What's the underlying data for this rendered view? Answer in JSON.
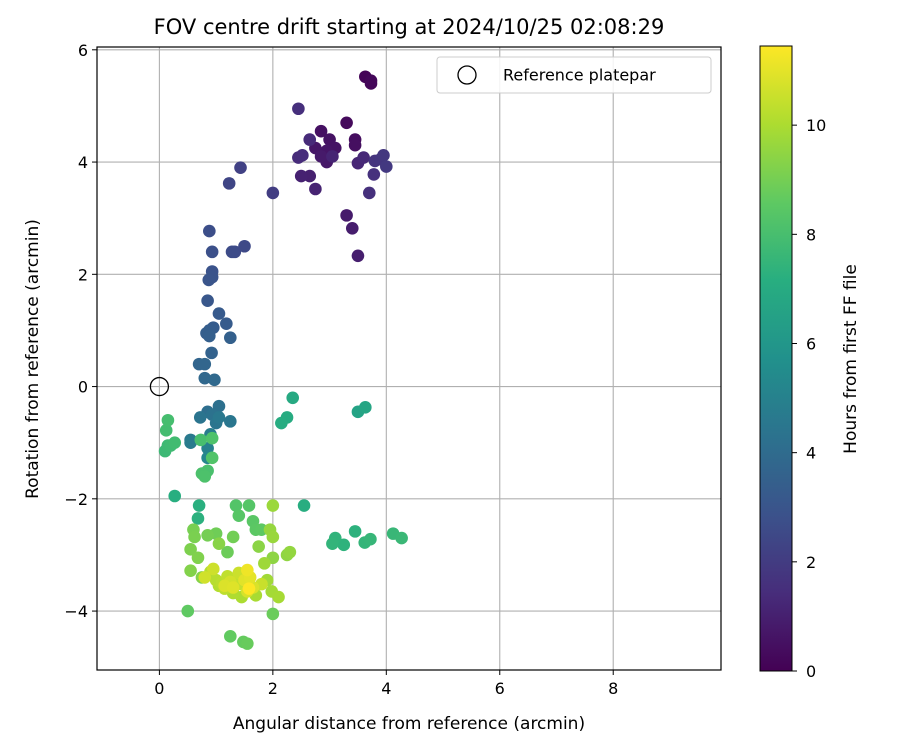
{
  "chart_data": {
    "type": "scatter",
    "title": "FOV centre drift starting at 2024/10/25 02:08:29",
    "xlabel": "Angular distance from reference (arcmin)",
    "ylabel": "Rotation from reference (arcmin)",
    "xlim": [
      -1.1,
      9.9
    ],
    "ylim": [
      -5.05,
      6.05
    ],
    "xticks": [
      0,
      2,
      4,
      6,
      8
    ],
    "yticks": [
      -4,
      -2,
      0,
      2,
      4,
      6
    ],
    "grid": true,
    "legend": {
      "position": "top-right",
      "entries": [
        "Reference platepar"
      ]
    },
    "reference_point": {
      "x": 0,
      "y": 0,
      "label": "Reference platepar"
    },
    "colorbar": {
      "label": "Hours from first FF file",
      "colormap": "viridis",
      "min": 0,
      "max": 11.45,
      "ticks": [
        0,
        2,
        4,
        6,
        8,
        10
      ]
    },
    "series": [
      {
        "points": [
          {
            "x": 3.63,
            "y": 5.52,
            "h": 0.1
          },
          {
            "x": 3.73,
            "y": 5.4,
            "h": 0.15
          },
          {
            "x": 3.73,
            "y": 5.45,
            "h": 0.2
          },
          {
            "x": 3.3,
            "y": 4.7,
            "h": 0.3
          },
          {
            "x": 3.45,
            "y": 4.4,
            "h": 0.4
          },
          {
            "x": 3.45,
            "y": 4.3,
            "h": 0.45
          },
          {
            "x": 2.85,
            "y": 4.55,
            "h": 0.5
          },
          {
            "x": 3.0,
            "y": 4.4,
            "h": 0.55
          },
          {
            "x": 3.1,
            "y": 4.25,
            "h": 0.6
          },
          {
            "x": 2.95,
            "y": 4.2,
            "h": 0.65
          },
          {
            "x": 2.75,
            "y": 4.25,
            "h": 0.7
          },
          {
            "x": 2.95,
            "y": 4.0,
            "h": 0.75
          },
          {
            "x": 2.85,
            "y": 4.1,
            "h": 0.8
          },
          {
            "x": 3.3,
            "y": 3.05,
            "h": 0.85
          },
          {
            "x": 3.4,
            "y": 2.82,
            "h": 0.9
          },
          {
            "x": 3.5,
            "y": 2.33,
            "h": 0.95
          },
          {
            "x": 2.65,
            "y": 3.75,
            "h": 1.0
          },
          {
            "x": 2.5,
            "y": 3.75,
            "h": 1.05
          },
          {
            "x": 2.75,
            "y": 3.52,
            "h": 1.1
          },
          {
            "x": 3.05,
            "y": 4.1,
            "h": 1.15
          },
          {
            "x": 3.5,
            "y": 3.98,
            "h": 1.2
          },
          {
            "x": 3.6,
            "y": 4.08,
            "h": 1.3
          },
          {
            "x": 2.65,
            "y": 4.4,
            "h": 1.35
          },
          {
            "x": 2.45,
            "y": 4.08,
            "h": 1.4
          },
          {
            "x": 2.52,
            "y": 4.12,
            "h": 1.45
          },
          {
            "x": 2.45,
            "y": 4.95,
            "h": 1.5
          },
          {
            "x": 3.7,
            "y": 3.45,
            "h": 1.55
          },
          {
            "x": 3.78,
            "y": 3.78,
            "h": 1.6
          },
          {
            "x": 3.8,
            "y": 4.02,
            "h": 1.7
          },
          {
            "x": 3.9,
            "y": 4.05,
            "h": 1.75
          },
          {
            "x": 3.95,
            "y": 4.12,
            "h": 1.8
          },
          {
            "x": 4.0,
            "y": 3.92,
            "h": 1.85
          },
          {
            "x": 2.0,
            "y": 3.45,
            "h": 2.05
          },
          {
            "x": 1.43,
            "y": 3.9,
            "h": 2.2
          },
          {
            "x": 1.23,
            "y": 3.62,
            "h": 2.35
          },
          {
            "x": 1.5,
            "y": 2.5,
            "h": 2.5
          },
          {
            "x": 1.33,
            "y": 2.4,
            "h": 2.55
          },
          {
            "x": 1.28,
            "y": 2.4,
            "h": 2.6
          },
          {
            "x": 0.88,
            "y": 2.77,
            "h": 2.7
          },
          {
            "x": 0.93,
            "y": 2.4,
            "h": 2.8
          },
          {
            "x": 0.93,
            "y": 2.05,
            "h": 2.9
          },
          {
            "x": 0.93,
            "y": 1.95,
            "h": 2.95
          },
          {
            "x": 0.87,
            "y": 1.9,
            "h": 3.0
          },
          {
            "x": 0.85,
            "y": 1.53,
            "h": 3.1
          },
          {
            "x": 1.05,
            "y": 1.3,
            "h": 3.2
          },
          {
            "x": 1.18,
            "y": 1.12,
            "h": 3.25
          },
          {
            "x": 0.95,
            "y": 1.05,
            "h": 3.3
          },
          {
            "x": 0.88,
            "y": 1.0,
            "h": 3.35
          },
          {
            "x": 0.83,
            "y": 0.95,
            "h": 3.4
          },
          {
            "x": 0.88,
            "y": 0.9,
            "h": 3.45
          },
          {
            "x": 1.25,
            "y": 0.87,
            "h": 3.5
          },
          {
            "x": 0.92,
            "y": 0.6,
            "h": 3.6
          },
          {
            "x": 0.7,
            "y": 0.4,
            "h": 3.7
          },
          {
            "x": 0.8,
            "y": 0.4,
            "h": 3.75
          },
          {
            "x": 0.8,
            "y": 0.15,
            "h": 3.85
          },
          {
            "x": 0.97,
            "y": 0.12,
            "h": 3.9
          },
          {
            "x": 0.85,
            "y": -0.45,
            "h": 4.1
          },
          {
            "x": 1.05,
            "y": -0.35,
            "h": 4.2
          },
          {
            "x": 0.93,
            "y": -0.5,
            "h": 4.3
          },
          {
            "x": 0.72,
            "y": -0.55,
            "h": 4.4
          },
          {
            "x": 1.0,
            "y": -0.65,
            "h": 4.45
          },
          {
            "x": 1.25,
            "y": -0.62,
            "h": 4.5
          },
          {
            "x": 1.05,
            "y": -0.55,
            "h": 4.55
          },
          {
            "x": 0.55,
            "y": -0.95,
            "h": 4.6
          },
          {
            "x": 0.55,
            "y": -1.0,
            "h": 4.7
          },
          {
            "x": 0.9,
            "y": -0.85,
            "h": 4.8
          },
          {
            "x": 0.85,
            "y": -1.1,
            "h": 5.0
          },
          {
            "x": 0.85,
            "y": -1.27,
            "h": 5.2
          },
          {
            "x": 3.5,
            "y": -0.45,
            "h": 6.6
          },
          {
            "x": 3.63,
            "y": -0.37,
            "h": 6.7
          },
          {
            "x": 2.35,
            "y": -0.2,
            "h": 6.9
          },
          {
            "x": 2.25,
            "y": -0.55,
            "h": 7.0
          },
          {
            "x": 2.15,
            "y": -0.65,
            "h": 7.05
          },
          {
            "x": 2.55,
            "y": -2.12,
            "h": 7.1
          },
          {
            "x": 0.27,
            "y": -1.95,
            "h": 7.15
          },
          {
            "x": 0.7,
            "y": -2.12,
            "h": 7.2
          },
          {
            "x": 0.68,
            "y": -2.35,
            "h": 7.25
          },
          {
            "x": 3.45,
            "y": -2.58,
            "h": 7.3
          },
          {
            "x": 3.25,
            "y": -2.82,
            "h": 7.35
          },
          {
            "x": 3.1,
            "y": -2.7,
            "h": 7.4
          },
          {
            "x": 3.05,
            "y": -2.8,
            "h": 7.45
          },
          {
            "x": 3.62,
            "y": -2.78,
            "h": 7.5
          },
          {
            "x": 3.72,
            "y": -2.72,
            "h": 7.55
          },
          {
            "x": 4.12,
            "y": -2.62,
            "h": 7.6
          },
          {
            "x": 4.27,
            "y": -2.7,
            "h": 7.65
          },
          {
            "x": 0.1,
            "y": -1.15,
            "h": 7.7
          },
          {
            "x": 0.15,
            "y": -1.05,
            "h": 7.75
          },
          {
            "x": 0.2,
            "y": -1.05,
            "h": 7.8
          },
          {
            "x": 0.27,
            "y": -1.0,
            "h": 7.85
          },
          {
            "x": 0.12,
            "y": -0.78,
            "h": 7.9
          },
          {
            "x": 0.15,
            "y": -0.6,
            "h": 7.95
          },
          {
            "x": 0.73,
            "y": -0.95,
            "h": 8.0
          },
          {
            "x": 0.85,
            "y": -1.5,
            "h": 8.05
          },
          {
            "x": 0.75,
            "y": -1.55,
            "h": 8.1
          },
          {
            "x": 0.8,
            "y": -1.6,
            "h": 8.15
          },
          {
            "x": 0.93,
            "y": -0.92,
            "h": 8.2
          },
          {
            "x": 0.93,
            "y": -1.27,
            "h": 8.25
          },
          {
            "x": 1.35,
            "y": -2.12,
            "h": 8.3
          },
          {
            "x": 1.58,
            "y": -2.12,
            "h": 8.35
          },
          {
            "x": 1.4,
            "y": -2.3,
            "h": 8.4
          },
          {
            "x": 1.65,
            "y": -2.4,
            "h": 8.45
          },
          {
            "x": 1.7,
            "y": -2.55,
            "h": 8.5
          },
          {
            "x": 1.8,
            "y": -2.55,
            "h": 8.55
          },
          {
            "x": 0.5,
            "y": -4.0,
            "h": 8.6
          },
          {
            "x": 1.25,
            "y": -4.45,
            "h": 8.65
          },
          {
            "x": 1.48,
            "y": -4.55,
            "h": 8.7
          },
          {
            "x": 1.55,
            "y": -4.58,
            "h": 8.75
          },
          {
            "x": 2.0,
            "y": -4.05,
            "h": 8.8
          },
          {
            "x": 1.2,
            "y": -2.95,
            "h": 8.85
          },
          {
            "x": 1.0,
            "y": -2.62,
            "h": 8.9
          },
          {
            "x": 1.3,
            "y": -2.68,
            "h": 8.95
          },
          {
            "x": 0.85,
            "y": -2.65,
            "h": 9.0
          },
          {
            "x": 0.6,
            "y": -2.55,
            "h": 9.05
          },
          {
            "x": 0.62,
            "y": -2.68,
            "h": 9.1
          },
          {
            "x": 0.55,
            "y": -2.9,
            "h": 9.15
          },
          {
            "x": 0.68,
            "y": -3.05,
            "h": 9.2
          },
          {
            "x": 0.55,
            "y": -3.28,
            "h": 9.25
          },
          {
            "x": 0.75,
            "y": -3.4,
            "h": 9.3
          },
          {
            "x": 1.05,
            "y": -2.8,
            "h": 9.35
          },
          {
            "x": 1.75,
            "y": -2.85,
            "h": 9.4
          },
          {
            "x": 2.0,
            "y": -3.05,
            "h": 9.45
          },
          {
            "x": 2.25,
            "y": -3.0,
            "h": 9.5
          },
          {
            "x": 2.3,
            "y": -2.95,
            "h": 9.55
          },
          {
            "x": 1.95,
            "y": -2.55,
            "h": 9.6
          },
          {
            "x": 2.0,
            "y": -2.68,
            "h": 9.65
          },
          {
            "x": 2.0,
            "y": -2.12,
            "h": 9.7
          },
          {
            "x": 1.85,
            "y": -3.15,
            "h": 9.75
          },
          {
            "x": 1.9,
            "y": -3.45,
            "h": 9.8
          },
          {
            "x": 1.98,
            "y": -3.65,
            "h": 9.85
          },
          {
            "x": 2.1,
            "y": -3.75,
            "h": 9.9
          },
          {
            "x": 1.7,
            "y": -3.72,
            "h": 9.95
          },
          {
            "x": 1.45,
            "y": -3.75,
            "h": 10.0
          },
          {
            "x": 1.3,
            "y": -3.68,
            "h": 10.05
          },
          {
            "x": 1.05,
            "y": -3.55,
            "h": 10.1
          },
          {
            "x": 0.9,
            "y": -3.3,
            "h": 10.15
          },
          {
            "x": 1.0,
            "y": -3.45,
            "h": 10.2
          },
          {
            "x": 1.1,
            "y": -3.5,
            "h": 10.25
          },
          {
            "x": 1.15,
            "y": -3.6,
            "h": 10.3
          },
          {
            "x": 1.2,
            "y": -3.38,
            "h": 10.35
          },
          {
            "x": 1.35,
            "y": -3.45,
            "h": 10.4
          },
          {
            "x": 1.45,
            "y": -3.52,
            "h": 10.45
          },
          {
            "x": 1.8,
            "y": -3.52,
            "h": 10.5
          },
          {
            "x": 1.4,
            "y": -3.32,
            "h": 10.55
          },
          {
            "x": 0.95,
            "y": -3.25,
            "h": 10.6
          },
          {
            "x": 0.8,
            "y": -3.4,
            "h": 10.65
          },
          {
            "x": 1.25,
            "y": -3.48,
            "h": 10.7
          },
          {
            "x": 1.55,
            "y": -3.65,
            "h": 10.75
          },
          {
            "x": 1.65,
            "y": -3.58,
            "h": 10.8
          },
          {
            "x": 1.15,
            "y": -3.55,
            "h": 10.85
          },
          {
            "x": 1.3,
            "y": -3.58,
            "h": 10.9
          },
          {
            "x": 1.5,
            "y": -3.45,
            "h": 10.95
          },
          {
            "x": 1.6,
            "y": -3.4,
            "h": 11.0
          },
          {
            "x": 1.55,
            "y": -3.27,
            "h": 11.2
          },
          {
            "x": 1.58,
            "y": -3.6,
            "h": 11.45
          }
        ]
      }
    ]
  }
}
